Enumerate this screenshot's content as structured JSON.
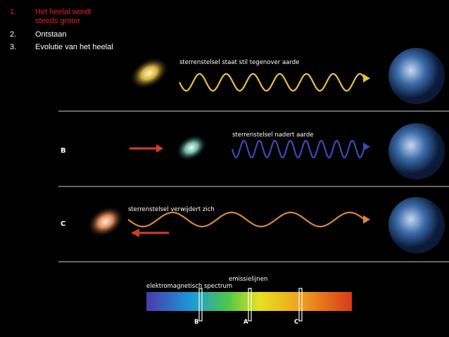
{
  "list": [
    {
      "number": "1.",
      "text": "Het heelal wordt steeds groter"
    },
    {
      "number": "2.",
      "text": "Ontstaan"
    },
    {
      "number": "3.",
      "text": "Evolutie van het heelal"
    }
  ],
  "panels": [
    {
      "caption": "sterrenstelsel staat stil tegenover aarde"
    },
    {
      "label": "B",
      "caption": "sterrenstelsel nadert aarde"
    },
    {
      "label": "C",
      "caption": "sterrenstelsel verwijdert zich"
    }
  ],
  "spectrum": {
    "title": "elektromagnetisch spectrum",
    "lines_title": "emissielijnen",
    "markers": [
      "B",
      "A",
      "C"
    ]
  }
}
